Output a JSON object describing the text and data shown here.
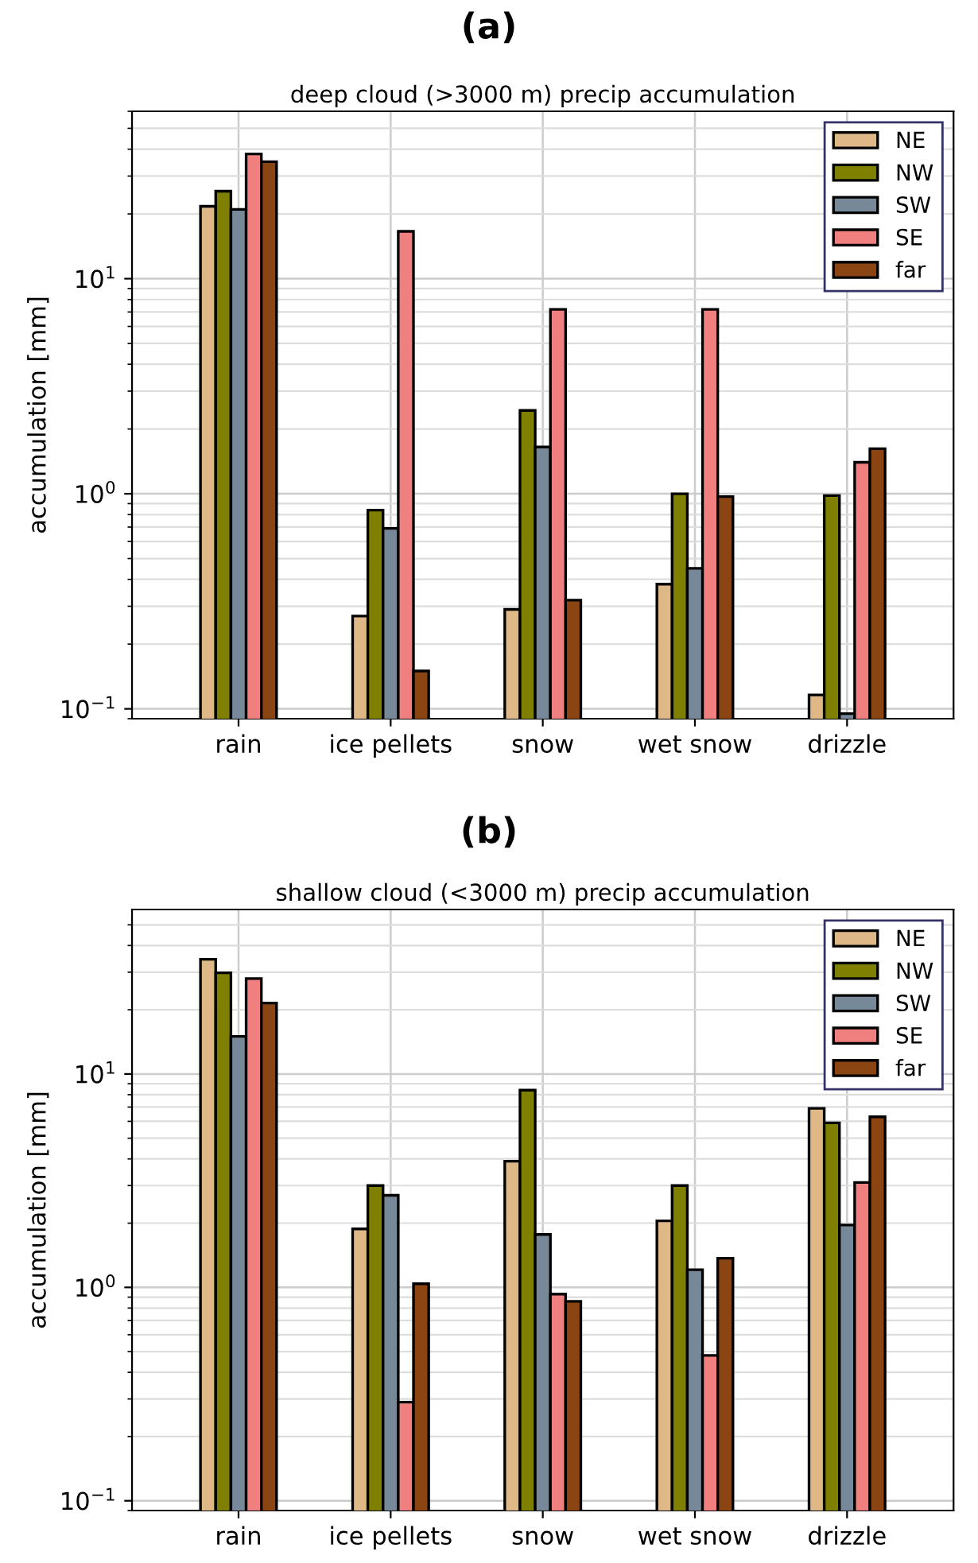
{
  "chart_data": [
    {
      "type": "bar",
      "title": "(a)",
      "subtitle": "deep cloud (>3000 m) precip accumulation",
      "ylabel": "accumulation [mm]",
      "log": "y",
      "categories": [
        "rain",
        "ice pellets",
        "snow",
        "wet snow",
        "drizzle"
      ],
      "series": [
        {
          "name": "NE",
          "color": "#deb887",
          "values": [
            21.7,
            0.27,
            0.29,
            0.38,
            0.116
          ]
        },
        {
          "name": "NW",
          "color": "#808000",
          "values": [
            25.5,
            0.84,
            2.44,
            1.0,
            0.98
          ]
        },
        {
          "name": "SW",
          "color": "#778899",
          "values": [
            21,
            0.69,
            1.65,
            0.45,
            0.095
          ]
        },
        {
          "name": "SE",
          "color": "#f08080",
          "values": [
            38,
            16.6,
            7.2,
            7.2,
            1.4
          ]
        },
        {
          "name": "far",
          "color": "#8b4513",
          "values": [
            35,
            0.15,
            0.32,
            0.97,
            1.62
          ]
        }
      ],
      "ylim": [
        0.09,
        60
      ],
      "yticks": [
        {
          "value": 0.1,
          "label": "10$^{−1}$"
        },
        {
          "value": 1,
          "label": "10$^{0}$"
        },
        {
          "value": 10,
          "label": "10$^{1}$"
        }
      ],
      "grid": true,
      "legend": "top right"
    },
    {
      "type": "bar",
      "title": "(b)",
      "subtitle": "shallow cloud (<3000 m) precip accumulation",
      "ylabel": "accumulation [mm]",
      "log": "y",
      "categories": [
        "rain",
        "ice pellets",
        "snow",
        "wet snow",
        "drizzle"
      ],
      "series": [
        {
          "name": "NE",
          "color": "#deb887",
          "values": [
            34.5,
            1.88,
            3.9,
            2.05,
            6.9
          ]
        },
        {
          "name": "NW",
          "color": "#808000",
          "values": [
            29.8,
            3.0,
            8.4,
            3.0,
            5.9
          ]
        },
        {
          "name": "SW",
          "color": "#778899",
          "values": [
            15,
            2.7,
            1.77,
            1.21,
            1.96
          ]
        },
        {
          "name": "SE",
          "color": "#f08080",
          "values": [
            28,
            0.29,
            0.93,
            0.48,
            3.1
          ]
        },
        {
          "name": "far",
          "color": "#8b4513",
          "values": [
            21.5,
            1.04,
            0.86,
            1.37,
            6.3
          ]
        }
      ],
      "ylim": [
        0.09,
        59
      ],
      "yticks": [
        {
          "value": 0.1,
          "label": "10$^{−1}$"
        },
        {
          "value": 1,
          "label": "10$^{0}$"
        },
        {
          "value": 10,
          "label": "10$^{1}$"
        }
      ],
      "grid": true,
      "legend": "top right"
    }
  ]
}
